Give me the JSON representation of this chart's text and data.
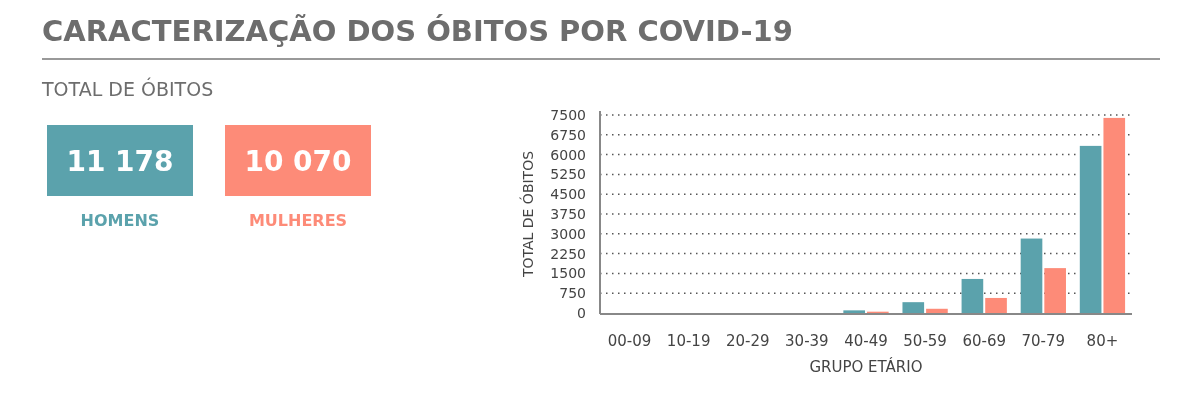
{
  "chart_data": [
    {
      "type": "other",
      "title": "CARACTERIZAÇÃO DOS ÓBITOS POR COVID-19",
      "subtitle": "TOTAL DE ÓBITOS",
      "categories": [
        "HOMENS",
        "MULHERES"
      ],
      "value_labels": [
        "11 178",
        "10 070"
      ],
      "colors": [
        "#5ba2ac",
        "#fd8b78"
      ]
    },
    {
      "type": "bar",
      "xlabel": "GRUPO ETÁRIO",
      "ylabel": "TOTAL DE ÓBITOS",
      "categories": [
        "00-09",
        "10-19",
        "20-29",
        "30-39",
        "40-49",
        "50-59",
        "60-69",
        "70-79",
        "80+"
      ],
      "series": [
        {
          "color": "#5ba2ac",
          "values": [
            0,
            0,
            0,
            0,
            100,
            410,
            1290,
            2820,
            6330
          ]
        },
        {
          "color": "#fd8b78",
          "values": [
            0,
            0,
            0,
            0,
            50,
            160,
            570,
            1700,
            7390
          ]
        }
      ],
      "ylim": [
        0,
        7500
      ],
      "yticks": [
        0,
        750,
        1500,
        2250,
        3000,
        3750,
        4500,
        5250,
        6000,
        6750,
        7500
      ],
      "grid": "y"
    }
  ]
}
